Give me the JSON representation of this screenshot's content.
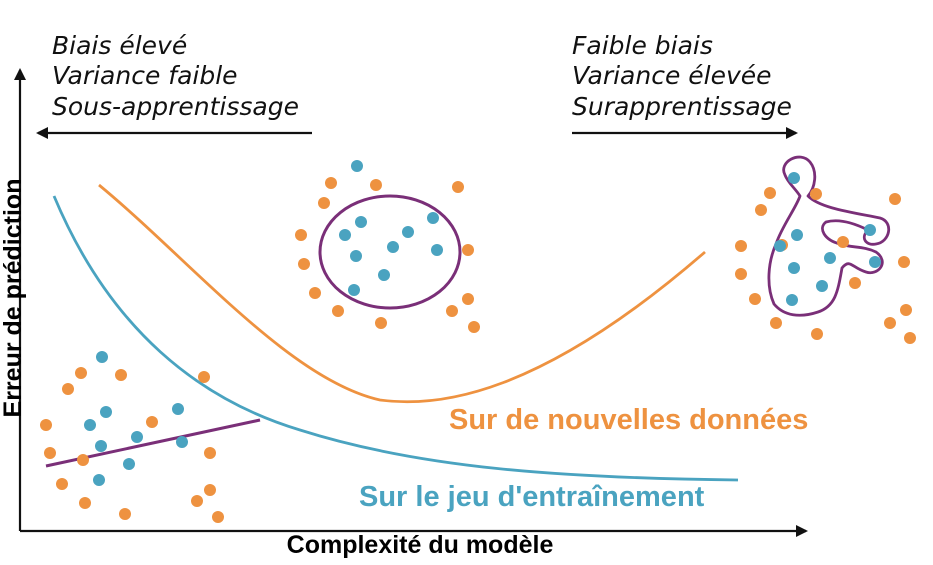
{
  "colors": {
    "test_curve": "#ee9240",
    "train_curve": "#4aa3c0",
    "model_fit": "#7a2f78",
    "class_a_point": "#ee9240",
    "class_b_point": "#4aa3c0",
    "axis": "#111111"
  },
  "regimes": {
    "left": {
      "lines": [
        "Biais élevé",
        "Variance faible",
        "Sous-apprentissage"
      ],
      "arrow_direction": "left"
    },
    "right": {
      "lines": [
        "Faible biais",
        "Variance élevée",
        "Surapprentissage"
      ],
      "arrow_direction": "right"
    }
  },
  "axes": {
    "x_label": "Complexité du modèle",
    "y_label": "Erreur de prédiction"
  },
  "curves": {
    "test": {
      "label": "Sur de nouvelles données",
      "shape": "U-shaped: decreases then increases with complexity"
    },
    "train": {
      "label": "Sur le jeu d'entraînement",
      "shape": "monotonically decreasing with complexity"
    }
  },
  "insets": [
    {
      "name": "underfit",
      "model": "straight line"
    },
    {
      "name": "good-fit",
      "model": "ellipse"
    },
    {
      "name": "overfit",
      "model": "irregular boundary"
    }
  ]
}
